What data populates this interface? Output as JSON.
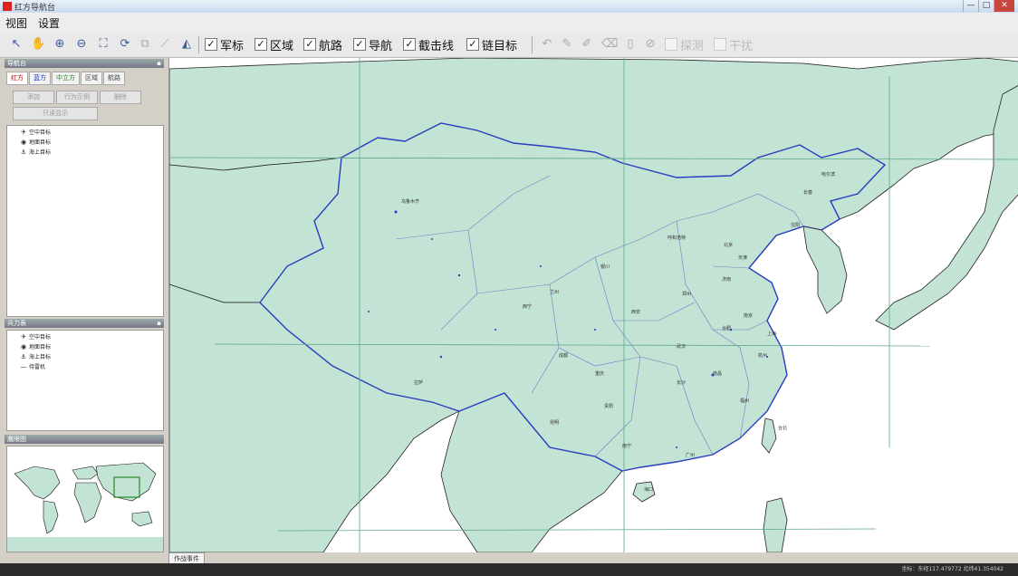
{
  "window": {
    "title": "红方导航台",
    "controls": [
      "—",
      "□",
      "✕"
    ]
  },
  "menu": [
    "视图",
    "设置"
  ],
  "toolbar": {
    "checks": [
      {
        "label": "军标",
        "checked": true
      },
      {
        "label": "区域",
        "checked": true
      },
      {
        "label": "航路",
        "checked": true
      },
      {
        "label": "导航",
        "checked": true
      },
      {
        "label": "截击线",
        "checked": true
      },
      {
        "label": "链目标",
        "checked": true
      },
      {
        "label": "探测",
        "checked": false
      },
      {
        "label": "干扰",
        "checked": false
      }
    ]
  },
  "panels": {
    "nav": {
      "title": "导航台",
      "tabs": [
        {
          "label": "红方",
          "color": "red"
        },
        {
          "label": "蓝方",
          "color": "blue"
        },
        {
          "label": "中立方",
          "color": "green"
        },
        {
          "label": "区域",
          "color": "gray"
        },
        {
          "label": "航路",
          "color": "gray"
        }
      ],
      "buttons": [
        "添加",
        "行为示例",
        "删除",
        "只读显示"
      ],
      "tree": [
        {
          "icon": "plane",
          "label": "空中目标"
        },
        {
          "icon": "radar",
          "label": "地面目标"
        },
        {
          "icon": "ship",
          "label": "海上目标"
        }
      ]
    },
    "unit": {
      "title": "兵力表",
      "tree": [
        {
          "icon": "plane",
          "label": "空中目标"
        },
        {
          "icon": "radar",
          "label": "地面目标"
        },
        {
          "icon": "ship",
          "label": "海上目标"
        },
        {
          "icon": "line",
          "label": "待雷机"
        }
      ]
    },
    "overview": {
      "title": "鹰眼图"
    }
  },
  "map": {
    "tab": "作战事件",
    "cities": [
      "乌鲁木齐",
      "哈尔滨",
      "长春",
      "沈阳",
      "北京",
      "天津",
      "呼和浩特",
      "银川",
      "兰州",
      "西宁",
      "西安",
      "郑州",
      "济南",
      "拉萨",
      "成都",
      "重庆",
      "武汉",
      "合肥",
      "南京",
      "上海",
      "杭州",
      "长沙",
      "南昌",
      "福州",
      "贵阳",
      "昆明",
      "南宁",
      "广州",
      "台北",
      "海口"
    ]
  },
  "status": {
    "coords": "坐标：东经117.479772  北纬41.354042"
  }
}
